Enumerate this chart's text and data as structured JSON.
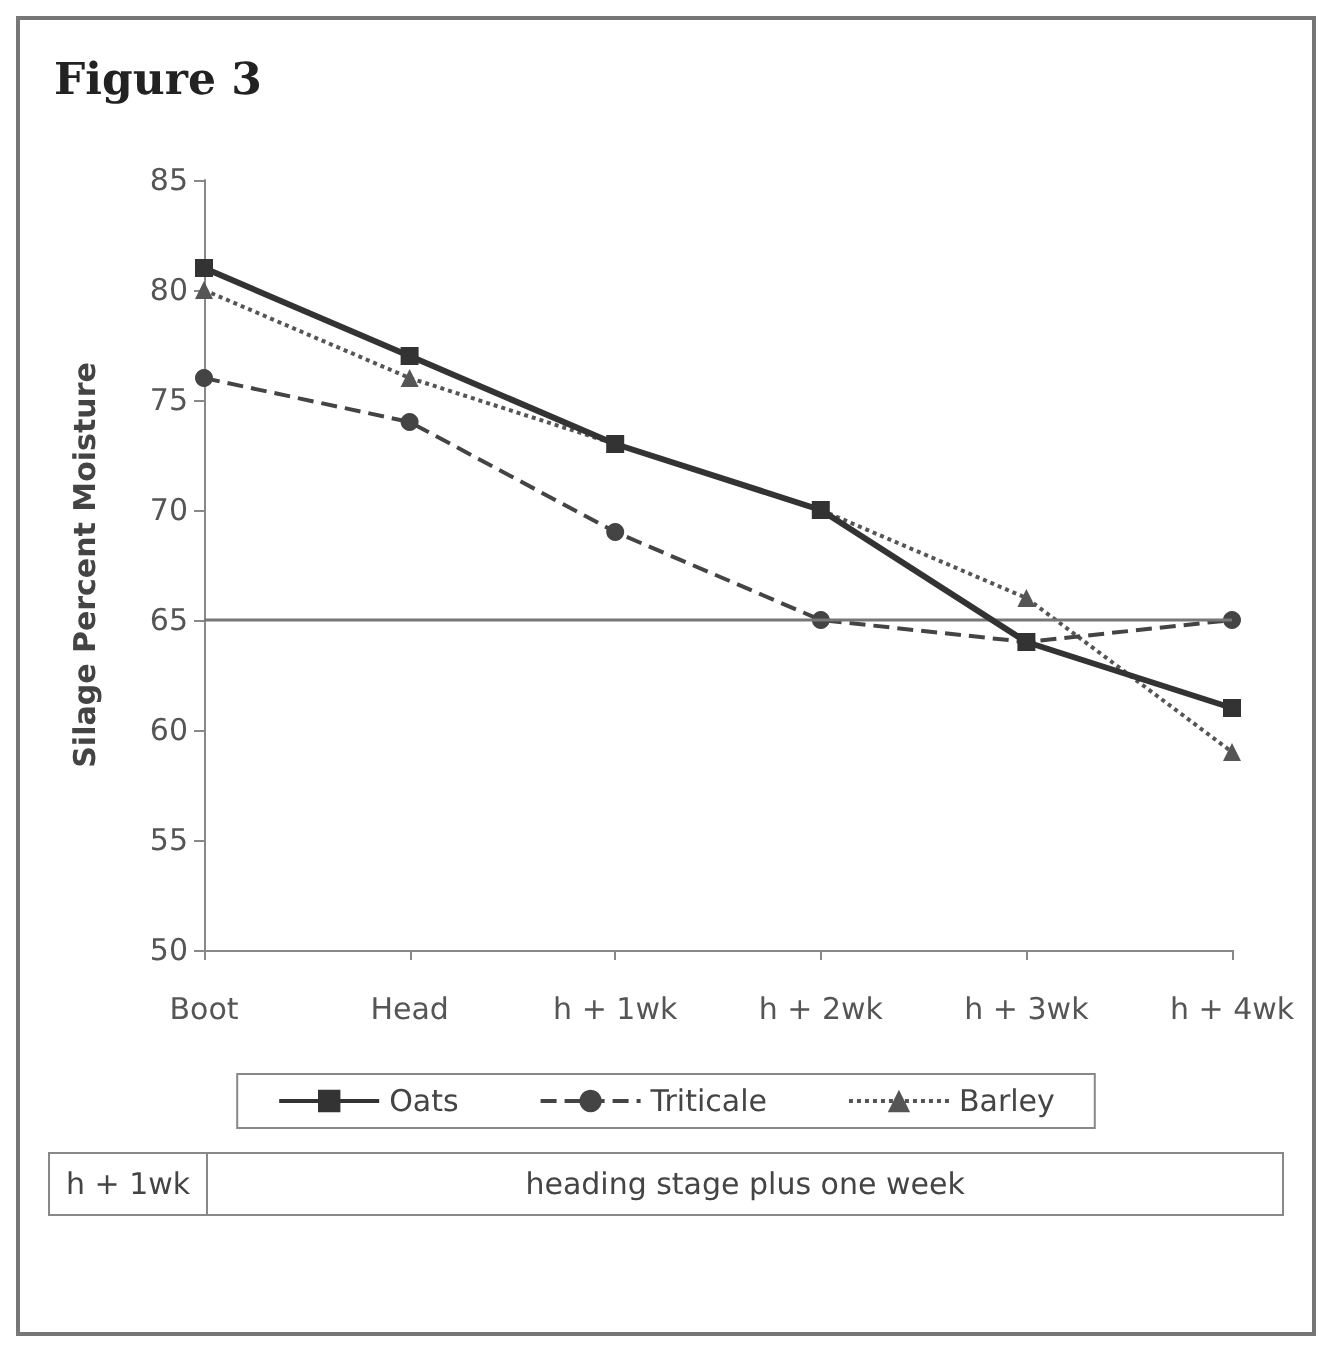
{
  "chart_data": {
    "type": "line",
    "title": "Figure 3",
    "ylabel": "Silage Percent Moisture",
    "categories": [
      "Boot",
      "Head",
      "h + 1wk",
      "h + 2wk",
      "h + 3wk",
      "h + 4wk"
    ],
    "series": [
      {
        "name": "Oats",
        "color": "#333333",
        "values": [
          81,
          77,
          73,
          70,
          64,
          61
        ],
        "line_style": "solid",
        "marker": "square"
      },
      {
        "name": "Triticale",
        "color": "#444444",
        "values": [
          76,
          74,
          69,
          65,
          64,
          65
        ],
        "line_style": "dashed",
        "marker": "circle"
      },
      {
        "name": "Barley",
        "color": "#555555",
        "values": [
          80,
          76,
          73,
          70,
          66,
          59
        ],
        "line_style": "dotted",
        "marker": "triangle"
      }
    ],
    "ylim": [
      50,
      85
    ],
    "yticks": [
      50,
      55,
      60,
      65,
      70,
      75,
      80,
      85
    ],
    "grid": false,
    "legend": "bottom",
    "ref_lines": [
      {
        "axis": "y",
        "value": 65,
        "color": "#777777"
      }
    ],
    "annotations": [
      "h + 1wk",
      "heading stage plus one week"
    ]
  }
}
